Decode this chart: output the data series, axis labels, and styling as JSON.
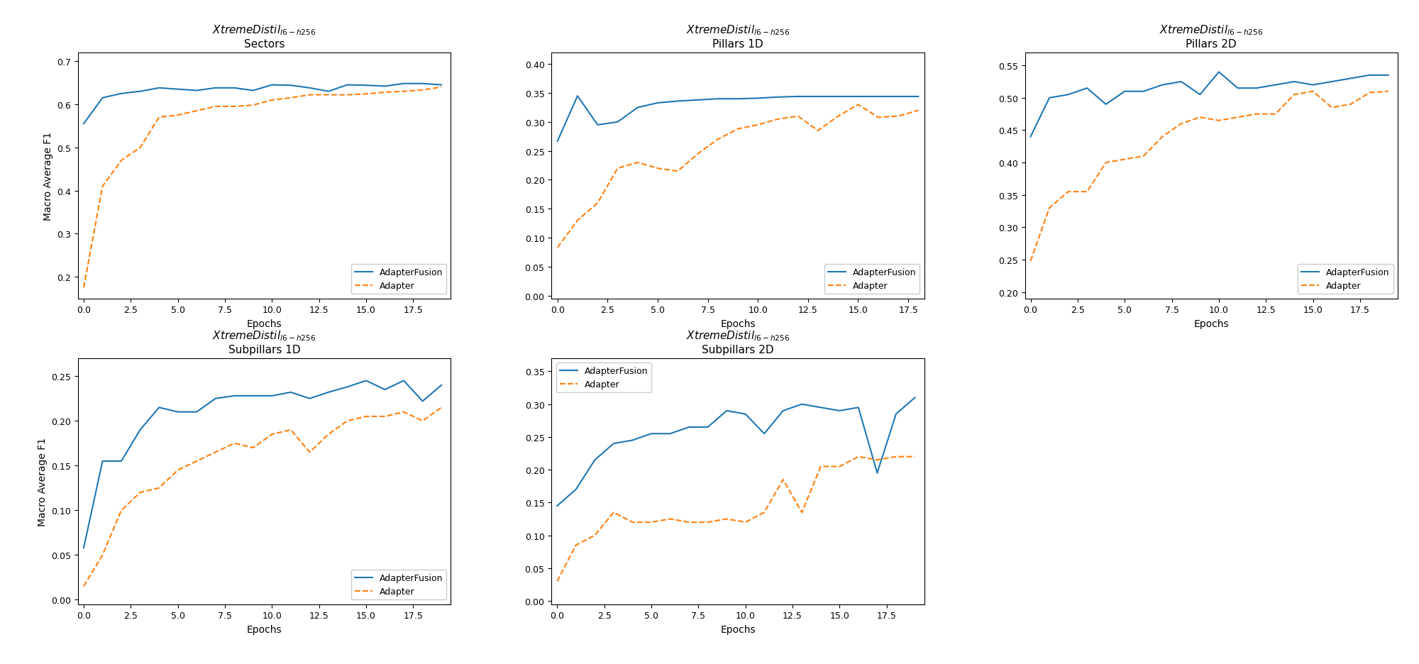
{
  "subplots": [
    {
      "subtitle": "Sectors",
      "ylabel": "Macro Average F1",
      "xlabel": "Epochs",
      "ylim": [
        0.15,
        0.72
      ],
      "yticks": [
        0.2,
        0.3,
        0.4,
        0.5,
        0.6,
        0.7
      ],
      "xlim": [
        -0.3,
        19.5
      ],
      "adapterfusion": [
        0.555,
        0.615,
        0.625,
        0.63,
        0.638,
        0.635,
        0.632,
        0.638,
        0.638,
        0.632,
        0.645,
        0.644,
        0.638,
        0.63,
        0.645,
        0.644,
        0.642,
        0.648,
        0.648,
        0.645
      ],
      "adapter": [
        0.175,
        0.41,
        0.47,
        0.5,
        0.57,
        0.575,
        0.585,
        0.595,
        0.595,
        0.598,
        0.61,
        0.615,
        0.622,
        0.622,
        0.622,
        0.624,
        0.628,
        0.63,
        0.633,
        0.64
      ],
      "legend_loc": "lower right"
    },
    {
      "subtitle": "Pillars 1D",
      "ylabel": "",
      "xlabel": "Epochs",
      "ylim": [
        -0.005,
        0.42
      ],
      "yticks": [
        0.0,
        0.05,
        0.1,
        0.15,
        0.2,
        0.25,
        0.3,
        0.35,
        0.4
      ],
      "xlim": [
        -0.3,
        18.3
      ],
      "adapterfusion": [
        0.267,
        0.345,
        0.295,
        0.3,
        0.325,
        0.333,
        0.336,
        0.338,
        0.34,
        0.34,
        0.341,
        0.343,
        0.344,
        0.344,
        0.344,
        0.344,
        0.344,
        0.344,
        0.344
      ],
      "adapter": [
        0.083,
        0.13,
        0.16,
        0.22,
        0.23,
        0.22,
        0.215,
        0.245,
        0.27,
        0.288,
        0.295,
        0.305,
        0.31,
        0.285,
        0.31,
        0.33,
        0.308,
        0.31,
        0.32
      ],
      "legend_loc": "lower right"
    },
    {
      "subtitle": "Pillars 2D",
      "ylabel": "",
      "xlabel": "Epochs",
      "ylim": [
        0.19,
        0.57
      ],
      "yticks": [
        0.2,
        0.25,
        0.3,
        0.35,
        0.4,
        0.45,
        0.5,
        0.55
      ],
      "xlim": [
        -0.3,
        19.5
      ],
      "adapterfusion": [
        0.44,
        0.5,
        0.505,
        0.515,
        0.49,
        0.51,
        0.51,
        0.52,
        0.525,
        0.505,
        0.54,
        0.515,
        0.515,
        0.52,
        0.525,
        0.52,
        0.525,
        0.53,
        0.535,
        0.535
      ],
      "adapter": [
        0.248,
        0.33,
        0.355,
        0.355,
        0.4,
        0.405,
        0.41,
        0.44,
        0.46,
        0.47,
        0.465,
        0.47,
        0.475,
        0.475,
        0.505,
        0.51,
        0.485,
        0.49,
        0.508,
        0.51
      ],
      "legend_loc": "lower right"
    },
    {
      "subtitle": "Subpillars 1D",
      "ylabel": "Macro Average F1",
      "xlabel": "Epochs",
      "ylim": [
        -0.005,
        0.27
      ],
      "yticks": [
        0.0,
        0.05,
        0.1,
        0.15,
        0.2,
        0.25
      ],
      "xlim": [
        -0.3,
        19.5
      ],
      "adapterfusion": [
        0.058,
        0.155,
        0.155,
        0.19,
        0.215,
        0.21,
        0.21,
        0.225,
        0.228,
        0.228,
        0.228,
        0.232,
        0.225,
        0.232,
        0.238,
        0.245,
        0.235,
        0.245,
        0.222,
        0.24
      ],
      "adapter": [
        0.015,
        0.05,
        0.1,
        0.12,
        0.125,
        0.145,
        0.155,
        0.165,
        0.175,
        0.17,
        0.185,
        0.19,
        0.165,
        0.185,
        0.2,
        0.205,
        0.205,
        0.21,
        0.2,
        0.215
      ],
      "legend_loc": "lower right"
    },
    {
      "subtitle": "Subpillars 2D",
      "ylabel": "",
      "xlabel": "Epochs",
      "ylim": [
        -0.005,
        0.37
      ],
      "yticks": [
        0.0,
        0.05,
        0.1,
        0.15,
        0.2,
        0.25,
        0.3,
        0.35
      ],
      "xlim": [
        -0.3,
        19.5
      ],
      "adapterfusion": [
        0.145,
        0.17,
        0.215,
        0.24,
        0.245,
        0.255,
        0.255,
        0.265,
        0.265,
        0.29,
        0.285,
        0.255,
        0.29,
        0.3,
        0.295,
        0.29,
        0.295,
        0.195,
        0.285,
        0.31
      ],
      "adapter": [
        0.03,
        0.085,
        0.1,
        0.135,
        0.12,
        0.12,
        0.125,
        0.12,
        0.12,
        0.125,
        0.12,
        0.135,
        0.185,
        0.135,
        0.205,
        0.205,
        0.22,
        0.215,
        0.22,
        0.22
      ],
      "legend_loc": "upper left"
    }
  ],
  "adapterfusion_color": "#1f77b4",
  "adapter_color": "#ff7f0e",
  "adapterfusion_label": "AdapterFusion",
  "adapter_label": "Adapter",
  "background_color": "#ffffff",
  "xticks": [
    0.0,
    2.5,
    5.0,
    7.5,
    10.0,
    12.5,
    15.0,
    17.5
  ],
  "xticklabels": [
    "0.0",
    "2.5",
    "5.0",
    "7.5",
    "10.0",
    "12.5",
    "15.0",
    "17.5"
  ]
}
